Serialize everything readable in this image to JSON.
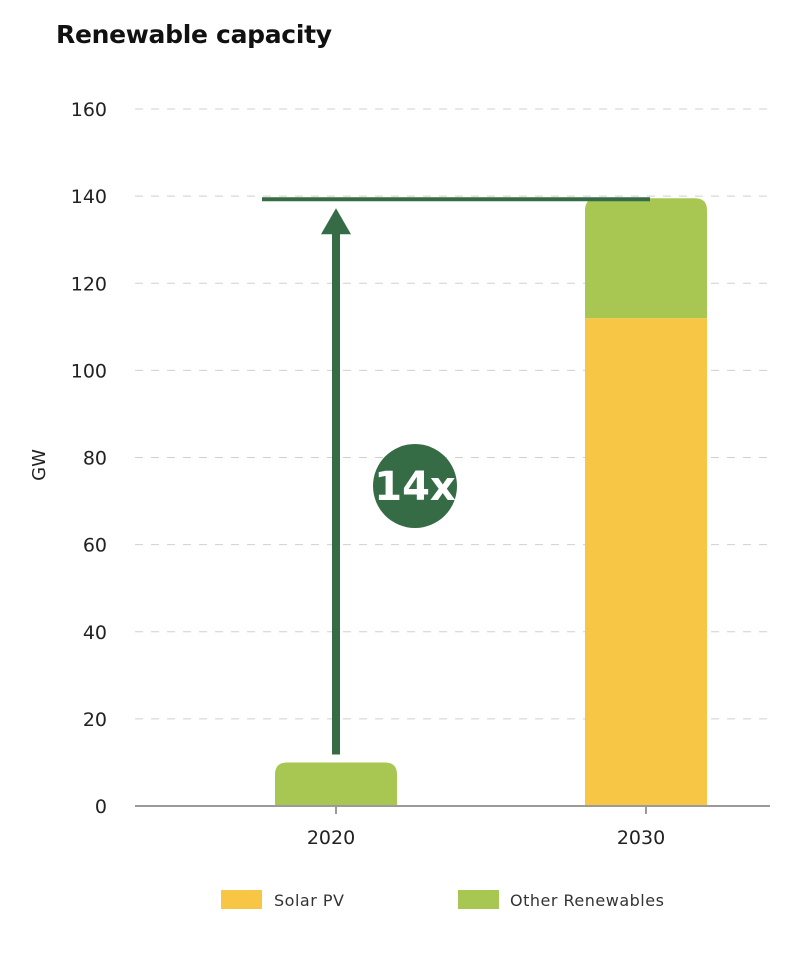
{
  "chart_data": {
    "type": "bar",
    "stacked": true,
    "title": "Renewable capacity",
    "ylabel": "GW",
    "xlabel": "",
    "categories": [
      "2020",
      "2030"
    ],
    "ylim": [
      0,
      160
    ],
    "yticks": [
      0,
      20,
      40,
      60,
      80,
      100,
      120,
      140,
      160
    ],
    "grid": true,
    "legend_position": "bottom",
    "series": [
      {
        "name": "Solar PV",
        "color": "#F6C644",
        "values": [
          0,
          112
        ]
      },
      {
        "name": "Other Renewables",
        "color": "#A8C752",
        "values": [
          10,
          27.5
        ]
      }
    ],
    "annotation": {
      "text": "14x",
      "from_value": 10,
      "to_value": 139.5,
      "color": "#356B45"
    }
  }
}
